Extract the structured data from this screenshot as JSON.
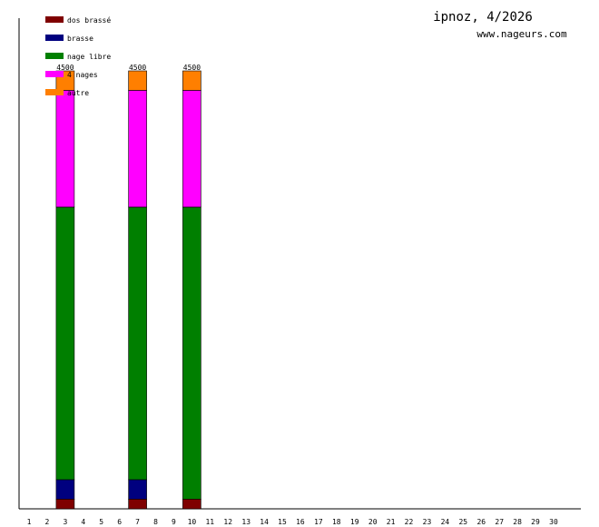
{
  "header": {
    "title": "ipnoz, 4/2026",
    "site": "www.nageurs.com"
  },
  "chart_data": {
    "type": "bar",
    "stacked": true,
    "title": "ipnoz, 4/2026",
    "xlabel": "",
    "ylabel": "",
    "categories": [
      "1",
      "2",
      "3",
      "4",
      "5",
      "6",
      "7",
      "8",
      "9",
      "10",
      "11",
      "12",
      "13",
      "14",
      "15",
      "16",
      "17",
      "18",
      "19",
      "20",
      "21",
      "22",
      "23",
      "24",
      "25",
      "26",
      "27",
      "28",
      "29",
      "30"
    ],
    "ylim": [
      0,
      4500
    ],
    "grid": false,
    "legend_position": "top-left",
    "series": [
      {
        "name": "dos brassé",
        "color": "#7f0000",
        "values": [
          0,
          0,
          100,
          0,
          0,
          0,
          100,
          0,
          0,
          100,
          0,
          0,
          0,
          0,
          0,
          0,
          0,
          0,
          0,
          0,
          0,
          0,
          0,
          0,
          0,
          0,
          0,
          0,
          0,
          0
        ]
      },
      {
        "name": "brasse",
        "color": "#00007f",
        "values": [
          0,
          0,
          200,
          0,
          0,
          0,
          200,
          0,
          0,
          0,
          0,
          0,
          0,
          0,
          0,
          0,
          0,
          0,
          0,
          0,
          0,
          0,
          0,
          0,
          0,
          0,
          0,
          0,
          0,
          0
        ]
      },
      {
        "name": "nage libre",
        "color": "#007f00",
        "values": [
          0,
          0,
          2800,
          0,
          0,
          0,
          2800,
          0,
          0,
          3000,
          0,
          0,
          0,
          0,
          0,
          0,
          0,
          0,
          0,
          0,
          0,
          0,
          0,
          0,
          0,
          0,
          0,
          0,
          0,
          0
        ]
      },
      {
        "name": "4 nages",
        "color": "#ff00ff",
        "values": [
          0,
          0,
          1200,
          0,
          0,
          0,
          1200,
          0,
          0,
          1200,
          0,
          0,
          0,
          0,
          0,
          0,
          0,
          0,
          0,
          0,
          0,
          0,
          0,
          0,
          0,
          0,
          0,
          0,
          0,
          0
        ]
      },
      {
        "name": "autre",
        "color": "#ff7f00",
        "values": [
          0,
          0,
          200,
          0,
          0,
          0,
          200,
          0,
          0,
          200,
          0,
          0,
          0,
          0,
          0,
          0,
          0,
          0,
          0,
          0,
          0,
          0,
          0,
          0,
          0,
          0,
          0,
          0,
          0,
          0
        ]
      }
    ],
    "totals": [
      {
        "category": "3",
        "label": "4500"
      },
      {
        "category": "7",
        "label": "4500"
      },
      {
        "category": "10",
        "label": "4500"
      }
    ]
  }
}
